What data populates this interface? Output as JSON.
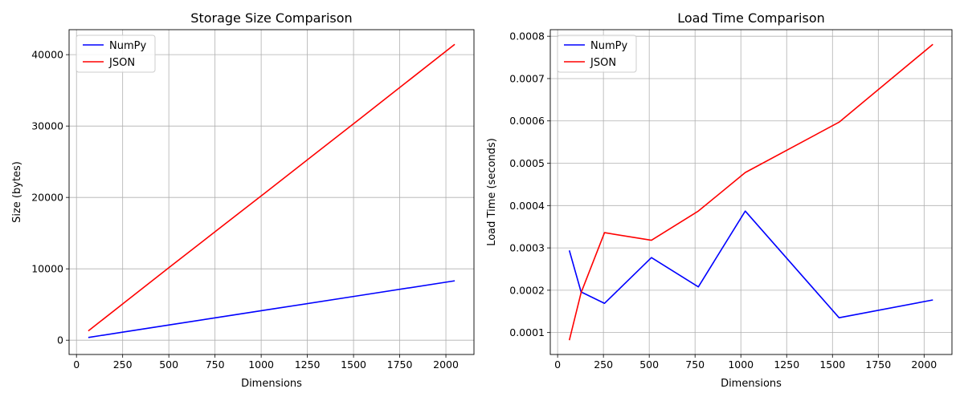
{
  "chart_data": [
    {
      "type": "line",
      "title": "Storage Size Comparison",
      "xlabel": "Dimensions",
      "ylabel": "Size (bytes)",
      "xlim": [
        -40,
        2152
      ],
      "ylim": [
        -2000,
        43500
      ],
      "xticks": [
        0,
        250,
        500,
        750,
        1000,
        1250,
        1500,
        1750,
        2000
      ],
      "xtick_labels": [
        "0",
        "250",
        "500",
        "750",
        "1000",
        "1250",
        "1500",
        "1750",
        "2000"
      ],
      "yticks": [
        0,
        10000,
        20000,
        30000,
        40000
      ],
      "ytick_labels": [
        "0",
        "10000",
        "20000",
        "30000",
        "40000"
      ],
      "grid": true,
      "legend": "top-left",
      "x": [
        64,
        128,
        256,
        512,
        768,
        1024,
        1536,
        2048
      ],
      "series": [
        {
          "name": "NumPy",
          "color": "#0000ff",
          "values": [
            384,
            640,
            1152,
            2176,
            3200,
            4224,
            6272,
            8320
          ]
        },
        {
          "name": "JSON",
          "color": "#ff0000",
          "values": [
            1300,
            2600,
            5200,
            10400,
            15550,
            20700,
            31050,
            41450
          ]
        }
      ]
    },
    {
      "type": "line",
      "title": "Load Time Comparison",
      "xlabel": "Dimensions",
      "ylabel": "Load Time (seconds)",
      "xlim": [
        -40,
        2152
      ],
      "ylim": [
        4.82e-05,
        0.0008155
      ],
      "xticks": [
        0,
        250,
        500,
        750,
        1000,
        1250,
        1500,
        1750,
        2000
      ],
      "xtick_labels": [
        "0",
        "250",
        "500",
        "750",
        "1000",
        "1250",
        "1500",
        "1750",
        "2000"
      ],
      "yticks": [
        0.0001,
        0.0002,
        0.0003,
        0.0004,
        0.0005,
        0.0006,
        0.0007,
        0.0008
      ],
      "ytick_labels": [
        "0.0001",
        "0.0002",
        "0.0003",
        "0.0004",
        "0.0005",
        "0.0006",
        "0.0007",
        "0.0008"
      ],
      "grid": true,
      "legend": "top-left",
      "x": [
        64,
        128,
        256,
        512,
        768,
        1024,
        1536,
        2048
      ],
      "series": [
        {
          "name": "NumPy",
          "color": "#0000ff",
          "values": [
            0.000294,
            0.000196,
            0.000169,
            0.000277,
            0.000208,
            0.000387,
            0.000135,
            0.000177
          ]
        },
        {
          "name": "JSON",
          "color": "#ff0000",
          "values": [
            8.2e-05,
            0.000194,
            0.000336,
            0.000318,
            0.000387,
            0.000478,
            0.000597,
            0.000781
          ]
        }
      ]
    }
  ]
}
